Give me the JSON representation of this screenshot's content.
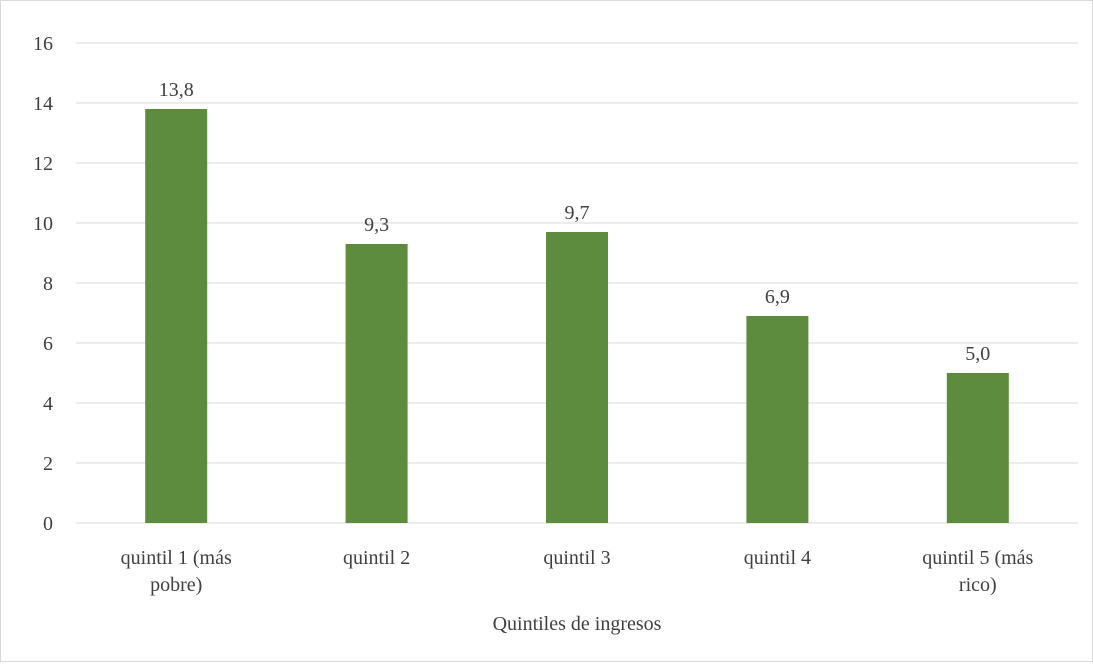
{
  "chart_data": {
    "type": "bar",
    "title": "",
    "xlabel": "Quintiles de ingresos",
    "ylabel": "",
    "categories": [
      [
        "quintil 1 (más",
        "pobre)"
      ],
      [
        "quintil 2"
      ],
      [
        "quintil 3"
      ],
      [
        "quintil 4"
      ],
      [
        "quintil 5 (más",
        "rico)"
      ]
    ],
    "values": [
      13.8,
      9.3,
      9.7,
      6.9,
      5.0
    ],
    "data_labels": [
      "13,8",
      "9,3",
      "9,7",
      "6,9",
      "5,0"
    ],
    "ylim": [
      0,
      16
    ],
    "yticks": [
      0,
      2,
      4,
      6,
      8,
      10,
      12,
      14,
      16
    ],
    "ytick_labels": [
      "0",
      "2",
      "4",
      "6",
      "8",
      "10",
      "12",
      "14",
      "16"
    ],
    "grid": true,
    "legend": "none",
    "colors": {
      "bar": "#5e8c3e",
      "grid": "#d9d9d9",
      "text": "#404040"
    }
  }
}
